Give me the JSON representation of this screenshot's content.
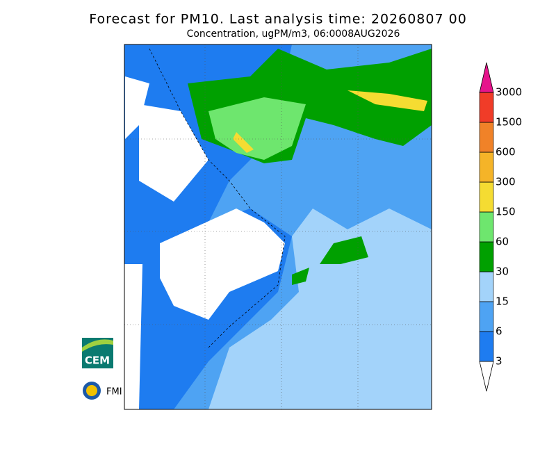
{
  "title": "Forecast for PM10. Last analysis time: 20260807 00",
  "subtitle": "Concentration, ugPM/m3, 06:0008AUG2026",
  "colorbar": {
    "levels": [
      3,
      6,
      15,
      30,
      60,
      150,
      300,
      600,
      1500,
      3000
    ],
    "colors": [
      "#1e7cf0",
      "#4ea3f3",
      "#a3d3fa",
      "#00a000",
      "#6ee66e",
      "#f5dc32",
      "#f5b428",
      "#f08228",
      "#f03c28"
    ],
    "under_color": "#ffffff",
    "over_color": "#e6148c"
  },
  "logos": [
    "CEM",
    "FMI"
  ]
}
